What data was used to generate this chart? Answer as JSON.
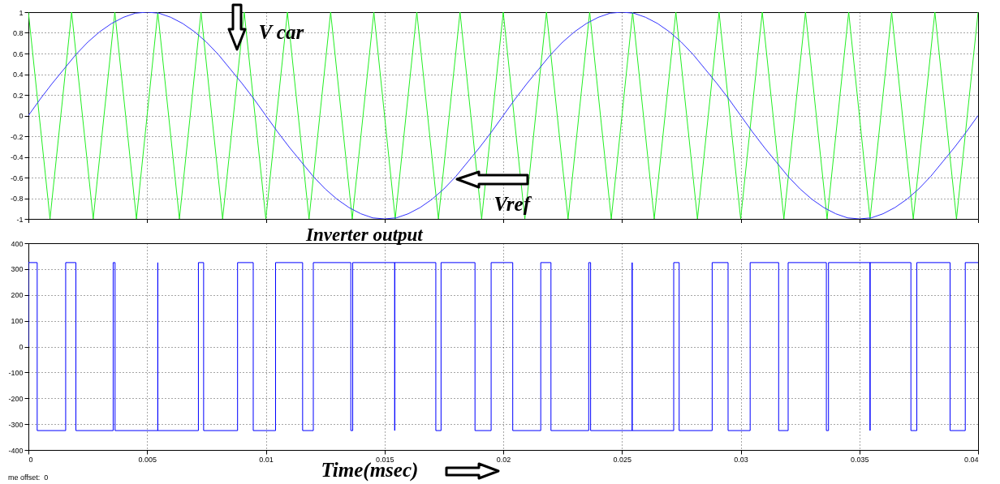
{
  "chart_data": [
    {
      "type": "line",
      "xlim": [
        0,
        0.04
      ],
      "xticks": [
        0,
        0.005,
        0.01,
        0.015,
        0.02,
        0.025,
        0.03,
        0.035,
        0.04
      ],
      "ylim": [
        -1,
        1
      ],
      "yticks": [
        -1,
        -0.8,
        -0.6,
        -0.4,
        -0.2,
        0,
        0.2,
        0.4,
        0.6,
        0.8,
        1
      ],
      "grid": true,
      "tick_labels": "y",
      "annotations": [
        {
          "text": "V car",
          "x": 0.0088,
          "y": 0.6
        },
        {
          "text": "Vref",
          "x": 0.0179,
          "y": -0.6
        }
      ],
      "series": [
        {
          "color": "#22ee22",
          "x": [
            0,
            0.00091,
            0.00182,
            0.00273,
            0.00364,
            0.00455,
            0.00545,
            0.00636,
            0.00727,
            0.00818,
            0.00909,
            0.01,
            0.01091,
            0.01182,
            0.01273,
            0.01364,
            0.01455,
            0.01545,
            0.01636,
            0.01727,
            0.01818,
            0.01909,
            0.02,
            0.02091,
            0.02182,
            0.02273,
            0.02364,
            0.02455,
            0.02545,
            0.02636,
            0.02727,
            0.02818,
            0.02909,
            0.03,
            0.03091,
            0.03182,
            0.03273,
            0.03364,
            0.03455,
            0.03545,
            0.03636,
            0.03727,
            0.03818,
            0.03909,
            0.04
          ],
          "values": [
            1,
            -1,
            1,
            -1,
            1,
            -1,
            1,
            -1,
            1,
            -1,
            1,
            -1,
            1,
            -1,
            1,
            -1,
            1,
            -1,
            1,
            -1,
            1,
            -1,
            1,
            -1,
            1,
            -1,
            1,
            -1,
            1,
            -1,
            1,
            -1,
            1,
            -1,
            1,
            -1,
            1,
            -1,
            1,
            -1,
            1,
            -1,
            1,
            -1,
            1
          ]
        },
        {
          "color": "#3333ff",
          "x": [
            0,
            0.0005,
            0.001,
            0.0015,
            0.002,
            0.0025,
            0.003,
            0.0035,
            0.004,
            0.0045,
            0.005,
            0.0055,
            0.006,
            0.0065,
            0.007,
            0.0075,
            0.008,
            0.0085,
            0.009,
            0.0095,
            0.01,
            0.0105,
            0.011,
            0.0115,
            0.012,
            0.0125,
            0.013,
            0.0135,
            0.014,
            0.0145,
            0.015,
            0.0155,
            0.016,
            0.0165,
            0.017,
            0.0175,
            0.018,
            0.0185,
            0.019,
            0.0195,
            0.02,
            0.0205,
            0.021,
            0.0215,
            0.022,
            0.0225,
            0.023,
            0.0235,
            0.024,
            0.0245,
            0.025,
            0.0255,
            0.026,
            0.0265,
            0.027,
            0.0275,
            0.028,
            0.0285,
            0.029,
            0.0295,
            0.03,
            0.0305,
            0.031,
            0.0315,
            0.032,
            0.0325,
            0.033,
            0.0335,
            0.034,
            0.0345,
            0.035,
            0.0355,
            0.036,
            0.0365,
            0.037,
            0.0375,
            0.038,
            0.0385,
            0.039,
            0.0395,
            0.04
          ],
          "values": [
            0,
            0.16,
            0.31,
            0.45,
            0.59,
            0.71,
            0.81,
            0.89,
            0.95,
            0.99,
            1,
            0.99,
            0.95,
            0.89,
            0.81,
            0.71,
            0.59,
            0.45,
            0.31,
            0.16,
            0,
            -0.16,
            -0.31,
            -0.45,
            -0.59,
            -0.71,
            -0.81,
            -0.89,
            -0.95,
            -0.99,
            -1,
            -0.99,
            -0.95,
            -0.89,
            -0.81,
            -0.71,
            -0.59,
            -0.45,
            -0.31,
            -0.16,
            0,
            0.16,
            0.31,
            0.45,
            0.59,
            0.71,
            0.81,
            0.89,
            0.95,
            0.99,
            1,
            0.99,
            0.95,
            0.89,
            0.81,
            0.71,
            0.59,
            0.45,
            0.31,
            0.16,
            0,
            -0.16,
            -0.31,
            -0.45,
            -0.59,
            -0.71,
            -0.81,
            -0.89,
            -0.95,
            -0.99,
            -1,
            -0.99,
            -0.95,
            -0.89,
            -0.81,
            -0.71,
            -0.59,
            -0.45,
            -0.31,
            -0.16,
            0
          ]
        }
      ]
    },
    {
      "type": "step",
      "title": "Inverter output",
      "xlabel": "Time(msec)",
      "xlim": [
        0,
        0.04
      ],
      "xticks": [
        0,
        0.005,
        0.01,
        0.015,
        0.02,
        0.025,
        0.03,
        0.035,
        0.04
      ],
      "ylim": [
        -400,
        400
      ],
      "yticks": [
        -400,
        -300,
        -200,
        -100,
        0,
        100,
        200,
        300,
        400
      ],
      "grid": true,
      "annotations": [
        "me offset:  0"
      ],
      "series": [
        {
          "color": "#0000ff",
          "x": [
            0,
            0,
            0.00037,
            0.00157,
            0.002,
            0.00357,
            0.00365,
            0.00545,
            0.00545,
            0.00716,
            0.00738,
            0.00881,
            0.00947,
            0.01041,
            0.01155,
            0.012,
            0.01358,
            0.01366,
            0.01543,
            0.01543,
            0.01716,
            0.01738,
            0.01881,
            0.01949,
            0.0204,
            0.02158,
            0.02201,
            0.0236,
            0.02368,
            0.02543,
            0.02543,
            0.02718,
            0.02741,
            0.0288,
            0.02947,
            0.0304,
            0.0316,
            0.032,
            0.03361,
            0.0337,
            0.03545,
            0.03545,
            0.03717,
            0.03742,
            0.03882,
            0.03946,
            0.04
          ],
          "values": [
            0,
            325,
            -325,
            325,
            -325,
            325,
            -325,
            325,
            -325,
            325,
            -325,
            325,
            -325,
            325,
            -325,
            325,
            -325,
            325,
            -325,
            325,
            -325,
            325,
            -325,
            325,
            -325,
            325,
            -325,
            325,
            -325,
            325,
            -325,
            325,
            -325,
            325,
            -325,
            325,
            -325,
            325,
            -325,
            325,
            -325,
            325,
            -325,
            325,
            -325,
            325,
            325
          ]
        }
      ]
    }
  ]
}
